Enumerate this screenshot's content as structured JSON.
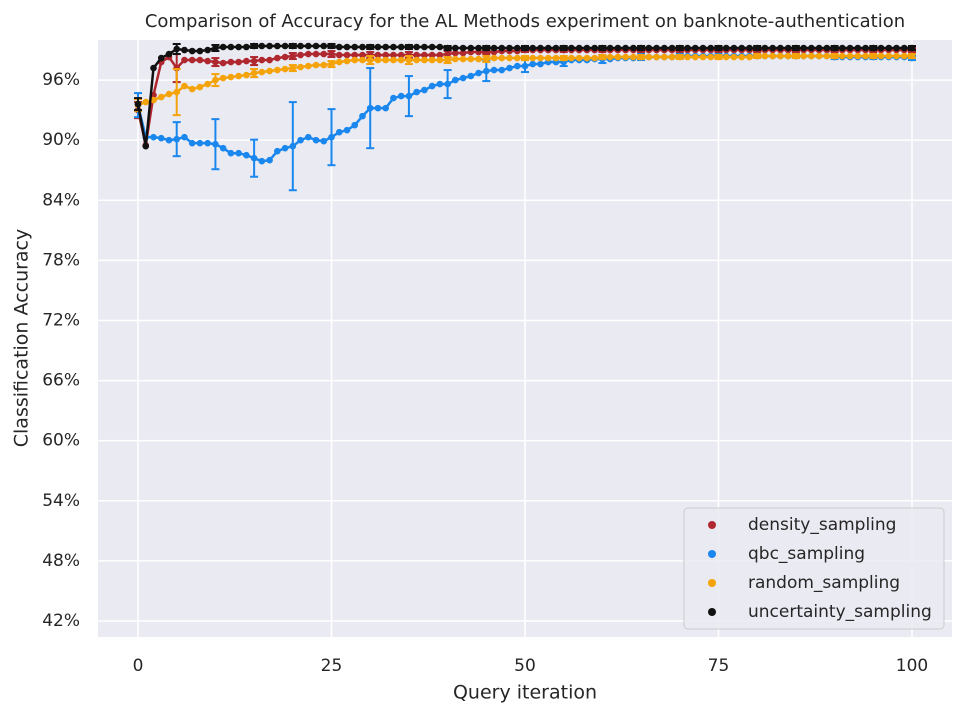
{
  "chart_data": {
    "type": "line",
    "title": "Comparison of Accuracy for the AL Methods experiment on banknote-authentication",
    "x_label": "Query iteration",
    "y_label": "Classification Accuracy",
    "xlim": [
      -5.17,
      105.17
    ],
    "ylim": [
      40.4,
      100
    ],
    "xticks": [
      0,
      25,
      50,
      75,
      100
    ],
    "yticks": [
      {
        "value": 42,
        "label": "42%"
      },
      {
        "value": 48,
        "label": "48%"
      },
      {
        "value": 54,
        "label": "54%"
      },
      {
        "value": 60,
        "label": "60%"
      },
      {
        "value": 66,
        "label": "66%"
      },
      {
        "value": 72,
        "label": "72%"
      },
      {
        "value": 78,
        "label": "78%"
      },
      {
        "value": 84,
        "label": "84%"
      },
      {
        "value": 90,
        "label": "90%"
      },
      {
        "value": 96,
        "label": "96%"
      }
    ],
    "grid": true,
    "legend": "lower right",
    "x": [
      0,
      1,
      2,
      3,
      4,
      5,
      6,
      7,
      8,
      9,
      10,
      11,
      12,
      13,
      14,
      15,
      16,
      17,
      18,
      19,
      20,
      21,
      22,
      23,
      24,
      25,
      26,
      27,
      28,
      29,
      30,
      31,
      32,
      33,
      34,
      35,
      36,
      37,
      38,
      39,
      40,
      41,
      42,
      43,
      44,
      45,
      46,
      47,
      48,
      49,
      50,
      51,
      52,
      53,
      54,
      55,
      56,
      57,
      58,
      59,
      60,
      61,
      62,
      63,
      64,
      65,
      66,
      67,
      68,
      69,
      70,
      71,
      72,
      73,
      74,
      75,
      76,
      77,
      78,
      79,
      80,
      81,
      82,
      83,
      84,
      85,
      86,
      87,
      88,
      89,
      90,
      91,
      92,
      93,
      94,
      95,
      96,
      97,
      98,
      99,
      100
    ],
    "series": [
      {
        "name": "density_sampling",
        "color": "#b0282f",
        "values": [
          93.0,
          89.5,
          94.5,
          97.8,
          98.3,
          97.2,
          98.0,
          98.0,
          98.0,
          97.9,
          97.8,
          97.7,
          97.8,
          97.8,
          97.9,
          97.9,
          98.0,
          98.0,
          98.2,
          98.3,
          98.4,
          98.5,
          98.6,
          98.6,
          98.6,
          98.6,
          98.5,
          98.5,
          98.5,
          98.5,
          98.5,
          98.5,
          98.5,
          98.5,
          98.5,
          98.5,
          98.5,
          98.5,
          98.5,
          98.5,
          98.6,
          98.7,
          98.7,
          98.8,
          98.8,
          98.8,
          98.8,
          98.9,
          98.9,
          98.9,
          99.0,
          99.0,
          99.0,
          99.0,
          99.0,
          99.0,
          99.0,
          99.0,
          99.0,
          99.0,
          99.0,
          99.0,
          99.0,
          99.0,
          99.0,
          99.0,
          99.0,
          99.0,
          99.0,
          99.0,
          99.0,
          99.0,
          99.0,
          99.0,
          99.0,
          99.0,
          99.0,
          99.0,
          99.0,
          99.0,
          99.0,
          99.0,
          99.0,
          99.0,
          99.0,
          99.0,
          99.0,
          99.0,
          99.0,
          99.0,
          99.0,
          99.0,
          99.0,
          99.0,
          99.0,
          99.0,
          99.0,
          99.0,
          99.0,
          99.0,
          99.0
        ],
        "errors": [
          0.8,
          null,
          null,
          null,
          null,
          1.4,
          null,
          null,
          null,
          null,
          0.4,
          null,
          null,
          null,
          null,
          0.4,
          null,
          null,
          null,
          null,
          0.3,
          null,
          null,
          null,
          null,
          0.3,
          null,
          null,
          null,
          null,
          0.3,
          null,
          null,
          null,
          null,
          0.3,
          null,
          null,
          null,
          null,
          0.3,
          null,
          null,
          null,
          null,
          0.2,
          null,
          null,
          null,
          null,
          0.2,
          null,
          null,
          null,
          null,
          0.2,
          null,
          null,
          null,
          null,
          0.2,
          null,
          null,
          null,
          null,
          0.2,
          null,
          null,
          null,
          null,
          0.2,
          null,
          null,
          null,
          null,
          0.2,
          null,
          null,
          null,
          null,
          0.2,
          null,
          null,
          null,
          null,
          0.2,
          null,
          null,
          null,
          null,
          0.2,
          null,
          null,
          null,
          null,
          0.2,
          null,
          null,
          null,
          null,
          0.2
        ]
      },
      {
        "name": "qbc_sampling",
        "color": "#1a87ee",
        "values": [
          93.5,
          90.3,
          90.3,
          90.2,
          90.0,
          90.1,
          90.3,
          89.7,
          89.7,
          89.7,
          89.6,
          89.2,
          88.7,
          88.7,
          88.5,
          88.2,
          87.9,
          88.0,
          88.9,
          89.2,
          89.4,
          90.0,
          90.3,
          90.0,
          89.9,
          90.3,
          90.8,
          91.0,
          91.5,
          92.4,
          93.2,
          93.2,
          93.2,
          94.2,
          94.4,
          94.4,
          94.8,
          95.0,
          95.4,
          95.6,
          95.6,
          96.0,
          96.2,
          96.4,
          96.7,
          96.9,
          97.0,
          97.0,
          97.2,
          97.4,
          97.4,
          97.6,
          97.6,
          97.8,
          97.8,
          97.8,
          98.0,
          98.0,
          98.0,
          98.1,
          98.1,
          98.1,
          98.2,
          98.2,
          98.2,
          98.3,
          98.3,
          98.3,
          98.3,
          98.3,
          98.4,
          98.4,
          98.4,
          98.4,
          98.4,
          98.4,
          98.4,
          98.4,
          98.4,
          98.4,
          98.4,
          98.4,
          98.4,
          98.4,
          98.4,
          98.4,
          98.4,
          98.4,
          98.4,
          98.4,
          98.3,
          98.3,
          98.3,
          98.3,
          98.3,
          98.3,
          98.3,
          98.3,
          98.3,
          98.3,
          98.2
        ],
        "errors": [
          1.2,
          null,
          null,
          null,
          null,
          1.7,
          null,
          null,
          null,
          null,
          2.5,
          null,
          null,
          null,
          null,
          1.85,
          null,
          null,
          null,
          null,
          4.4,
          null,
          null,
          null,
          null,
          2.8,
          null,
          null,
          null,
          null,
          4.0,
          null,
          null,
          null,
          null,
          2.0,
          null,
          null,
          null,
          null,
          1.4,
          null,
          null,
          null,
          null,
          1.0,
          null,
          null,
          null,
          null,
          0.6,
          null,
          null,
          null,
          null,
          0.4,
          null,
          null,
          null,
          null,
          0.4,
          null,
          null,
          null,
          null,
          0.3,
          null,
          null,
          null,
          null,
          0.2,
          null,
          null,
          null,
          null,
          0.2,
          null,
          null,
          null,
          null,
          0.2,
          null,
          null,
          null,
          null,
          0.2,
          null,
          null,
          null,
          null,
          0.2,
          null,
          null,
          null,
          null,
          0.2,
          null,
          null,
          null,
          null,
          0.2
        ]
      },
      {
        "name": "random_sampling",
        "color": "#f5a30a",
        "values": [
          93.5,
          93.8,
          94.0,
          94.3,
          94.6,
          94.8,
          95.4,
          95.1,
          95.3,
          95.6,
          96.0,
          96.2,
          96.3,
          96.4,
          96.5,
          96.7,
          96.8,
          96.9,
          97.0,
          97.1,
          97.2,
          97.3,
          97.4,
          97.5,
          97.5,
          97.6,
          97.8,
          97.9,
          98.0,
          98.0,
          98.0,
          98.0,
          98.0,
          98.0,
          98.0,
          98.0,
          98.0,
          98.0,
          98.0,
          98.0,
          98.0,
          98.1,
          98.1,
          98.1,
          98.1,
          98.1,
          98.2,
          98.2,
          98.2,
          98.2,
          98.2,
          98.2,
          98.2,
          98.2,
          98.2,
          98.2,
          98.2,
          98.2,
          98.2,
          98.2,
          98.3,
          98.3,
          98.3,
          98.3,
          98.3,
          98.3,
          98.3,
          98.3,
          98.3,
          98.3,
          98.3,
          98.3,
          98.3,
          98.3,
          98.3,
          98.3,
          98.3,
          98.3,
          98.3,
          98.3,
          98.4,
          98.4,
          98.4,
          98.4,
          98.4,
          98.4,
          98.4,
          98.4,
          98.4,
          98.4,
          98.4,
          98.4,
          98.4,
          98.4,
          98.4,
          98.4,
          98.4,
          98.4,
          98.4,
          98.4,
          98.4
        ],
        "errors": [
          0.6,
          null,
          null,
          null,
          null,
          2.3,
          null,
          null,
          null,
          null,
          0.6,
          null,
          null,
          null,
          null,
          0.4,
          null,
          null,
          null,
          null,
          0.3,
          null,
          null,
          null,
          null,
          0.3,
          null,
          null,
          null,
          null,
          0.4,
          null,
          null,
          null,
          null,
          0.4,
          null,
          null,
          null,
          null,
          0.3,
          null,
          null,
          null,
          null,
          0.3,
          null,
          null,
          null,
          null,
          0.2,
          null,
          null,
          null,
          null,
          0.2,
          null,
          null,
          null,
          null,
          0.2,
          null,
          null,
          null,
          null,
          0.2,
          null,
          null,
          null,
          null,
          0.2,
          null,
          null,
          null,
          null,
          0.2,
          null,
          null,
          null,
          null,
          0.2,
          null,
          null,
          null,
          null,
          0.2,
          null,
          null,
          null,
          null,
          0.2,
          null,
          null,
          null,
          null,
          0.2,
          null,
          null,
          null,
          null,
          0.2
        ]
      },
      {
        "name": "uncertainty_sampling",
        "color": "#111111",
        "values": [
          93.6,
          89.4,
          97.2,
          98.2,
          98.6,
          99.1,
          99.0,
          98.9,
          98.9,
          99.0,
          99.2,
          99.3,
          99.3,
          99.3,
          99.3,
          99.4,
          99.4,
          99.4,
          99.4,
          99.4,
          99.4,
          99.4,
          99.4,
          99.4,
          99.4,
          99.4,
          99.3,
          99.3,
          99.3,
          99.3,
          99.3,
          99.3,
          99.3,
          99.3,
          99.3,
          99.3,
          99.3,
          99.3,
          99.3,
          99.3,
          99.2,
          99.2,
          99.2,
          99.2,
          99.2,
          99.2,
          99.2,
          99.2,
          99.2,
          99.2,
          99.2,
          99.2,
          99.2,
          99.2,
          99.2,
          99.2,
          99.2,
          99.2,
          99.2,
          99.2,
          99.2,
          99.2,
          99.2,
          99.2,
          99.2,
          99.2,
          99.2,
          99.2,
          99.2,
          99.2,
          99.2,
          99.2,
          99.2,
          99.2,
          99.2,
          99.2,
          99.2,
          99.2,
          99.2,
          99.2,
          99.2,
          99.2,
          99.2,
          99.2,
          99.2,
          99.2,
          99.2,
          99.2,
          99.2,
          99.2,
          99.2,
          99.2,
          99.2,
          99.2,
          99.2,
          99.2,
          99.2,
          99.2,
          99.2,
          99.2,
          99.2
        ],
        "errors": [
          0.6,
          null,
          null,
          null,
          null,
          0.5,
          null,
          null,
          null,
          null,
          0.3,
          null,
          null,
          null,
          null,
          0.2,
          null,
          null,
          null,
          null,
          0.2,
          null,
          null,
          null,
          null,
          0.2,
          null,
          null,
          null,
          null,
          0.2,
          null,
          null,
          null,
          null,
          0.2,
          null,
          null,
          null,
          null,
          0.2,
          null,
          null,
          null,
          null,
          0.2,
          null,
          null,
          null,
          null,
          0.2,
          null,
          null,
          null,
          null,
          0.2,
          null,
          null,
          null,
          null,
          0.2,
          null,
          null,
          null,
          null,
          0.2,
          null,
          null,
          null,
          null,
          0.2,
          null,
          null,
          null,
          null,
          0.2,
          null,
          null,
          null,
          null,
          0.2,
          null,
          null,
          null,
          null,
          0.2,
          null,
          null,
          null,
          null,
          0.2,
          null,
          null,
          null,
          null,
          0.2,
          null,
          null,
          null,
          null,
          0.2
        ]
      }
    ]
  }
}
